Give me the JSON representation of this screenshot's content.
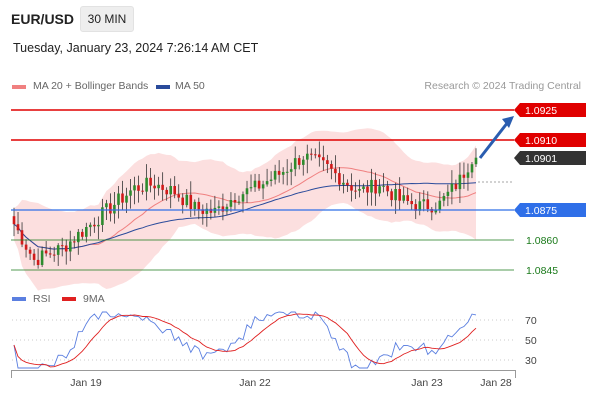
{
  "header": {
    "symbol": "EUR/USD",
    "timeframe": "30 MIN"
  },
  "datetime": "Tuesday, January 23, 2024 7:26:14 AM CET",
  "credit": "Research © 2024 Trading Central",
  "legend": [
    {
      "label": "MA 20 + Bollinger Bands",
      "color": "#f08080"
    },
    {
      "label": "MA 50",
      "color": "#2a4b9b"
    }
  ],
  "rsi_legend": [
    {
      "label": "RSI",
      "color": "#5b7fe0"
    },
    {
      "label": "9MA",
      "color": "#e02020"
    }
  ],
  "chart_data": {
    "type": "candlestick",
    "x_labels": [
      "Jan 19",
      "Jan 22",
      "Jan 23",
      "Jan 28"
    ],
    "ylim": [
      1.0835,
      1.0935
    ],
    "current_price": {
      "label": "1.0901",
      "value": 1.0901,
      "color": "#333333"
    },
    "levels": [
      {
        "label": "1.0925",
        "value": 1.0925,
        "color": "#e00000",
        "style": "tag"
      },
      {
        "label": "1.0910",
        "value": 1.091,
        "color": "#e00000",
        "style": "tag"
      },
      {
        "label": "1.0875",
        "value": 1.0875,
        "color": "#2f6fe8",
        "style": "tag"
      },
      {
        "label": "1.0860",
        "value": 1.086,
        "color": "#1a7a1a",
        "style": "text"
      },
      {
        "label": "1.0845",
        "value": 1.0845,
        "color": "#1a7a1a",
        "style": "text"
      }
    ],
    "forecast_arrow": {
      "from": 1.0901,
      "to": 1.0921,
      "color": "#2a5db0"
    },
    "rsi": {
      "ylim": [
        20,
        80
      ],
      "ticks": [
        "70",
        "50",
        "30"
      ],
      "tick_values": [
        70,
        50,
        30
      ]
    }
  }
}
